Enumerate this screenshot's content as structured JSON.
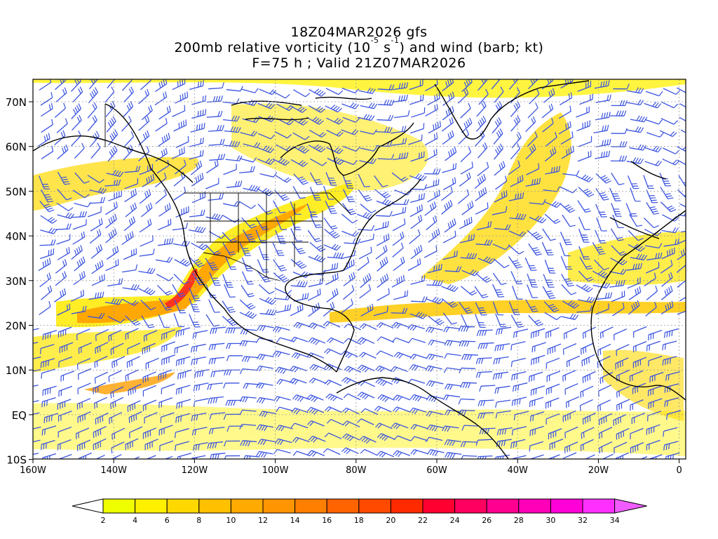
{
  "title": {
    "line1": "18Z04MAR2026 gfs",
    "line2_pre": "200mb relative vorticity (10",
    "line2_exp1": "-5",
    "line2_mid": " s",
    "line2_exp2": "-1",
    "line2_post": ") and wind (barb; kt)",
    "line3": "F=75 h ; Valid 21Z07MAR2026"
  },
  "axes": {
    "lat_labels": [
      "70N",
      "60N",
      "50N",
      "40N",
      "30N",
      "20N",
      "10N",
      "EQ",
      "10S"
    ],
    "lon_labels": [
      "160W",
      "140W",
      "120W",
      "100W",
      "80W",
      "60W",
      "40W",
      "20W",
      "0"
    ]
  },
  "colors": {
    "barb": "#3a53e0",
    "coast": "#000000",
    "grid": "#9a9a9a"
  },
  "colorbar": {
    "labels": [
      "2",
      "4",
      "6",
      "8",
      "10",
      "12",
      "14",
      "16",
      "18",
      "20",
      "22",
      "24",
      "26",
      "28",
      "30",
      "32",
      "34"
    ],
    "colors": [
      "#ffffff",
      "#f0ff00",
      "#fff000",
      "#ffd800",
      "#ffc000",
      "#ffaa00",
      "#ff9500",
      "#ff7f00",
      "#ff6400",
      "#ff4a00",
      "#ff2a00",
      "#ff0030",
      "#ff0060",
      "#ff0090",
      "#ff00b8",
      "#ff00d8",
      "#ff30ff",
      "#f05cff"
    ]
  },
  "vorticity_bands": [
    {
      "name": "subtropical-jet-west",
      "color": "#ffea00",
      "opacity": 0.85
    },
    {
      "name": "subtropical-jet-core",
      "color": "#ff9f00",
      "opacity": 0.9
    },
    {
      "name": "jet-max",
      "color": "#ff2e20",
      "opacity": 0.95
    },
    {
      "name": "atlantic-jet",
      "color": "#ffd000",
      "opacity": 0.85
    }
  ]
}
